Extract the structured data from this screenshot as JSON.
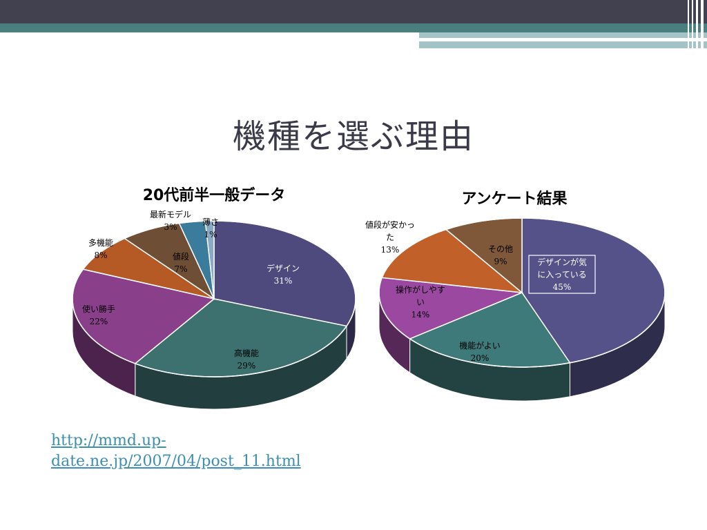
{
  "slide": {
    "title": "機種を選ぶ理由",
    "source_link": "http://mmd.up-date.ne.jp/2007/04/post_11.html",
    "colors": {
      "header_dark": "#41414f",
      "header_teal": "#4a7f80",
      "link": "#3c8fae"
    }
  },
  "chart_data": [
    {
      "type": "pie",
      "title": "20代前半一般データ",
      "slices": [
        {
          "label": "デザイン",
          "pct_label": "31%",
          "value": 31,
          "color": "#4e4a7e"
        },
        {
          "label": "高機能",
          "pct_label": "29%",
          "value": 29,
          "color": "#3d7170"
        },
        {
          "label": "使い勝手",
          "pct_label": "22%",
          "value": 22,
          "color": "#8a3f8a"
        },
        {
          "label": "多機能",
          "pct_label": "8%",
          "value": 8,
          "color": "#b55a24"
        },
        {
          "label": "値段",
          "pct_label": "7%",
          "value": 7,
          "color": "#6e4e34"
        },
        {
          "label": "最新モデル",
          "pct_label": "3%",
          "value": 3,
          "color": "#3b7c9c"
        },
        {
          "label": "薄さ",
          "pct_label": "1%",
          "value": 1,
          "color": "#8aa9c4"
        }
      ]
    },
    {
      "type": "pie",
      "title": "アンケート結果",
      "slices": [
        {
          "label": "デザインが気に入っている",
          "label_lines": [
            "デザインが気",
            "に入っている"
          ],
          "pct_label": "45%",
          "value": 45,
          "color": "#545289"
        },
        {
          "label": "機能がよい",
          "label_lines": [
            "機能がよい"
          ],
          "pct_label": "20%",
          "value": 20,
          "color": "#3f7a7a"
        },
        {
          "label": "操作がしやすい",
          "label_lines": [
            "操作がしやす",
            "い"
          ],
          "pct_label": "14%",
          "value": 14,
          "color": "#9a48a0"
        },
        {
          "label": "値段が安かった",
          "label_lines": [
            "値段が安かっ",
            "た"
          ],
          "pct_label": "13%",
          "value": 13,
          "color": "#c2602a"
        },
        {
          "label": "その他",
          "label_lines": [
            "その他"
          ],
          "pct_label": "9%",
          "value": 9,
          "color": "#7e5838"
        }
      ]
    }
  ]
}
